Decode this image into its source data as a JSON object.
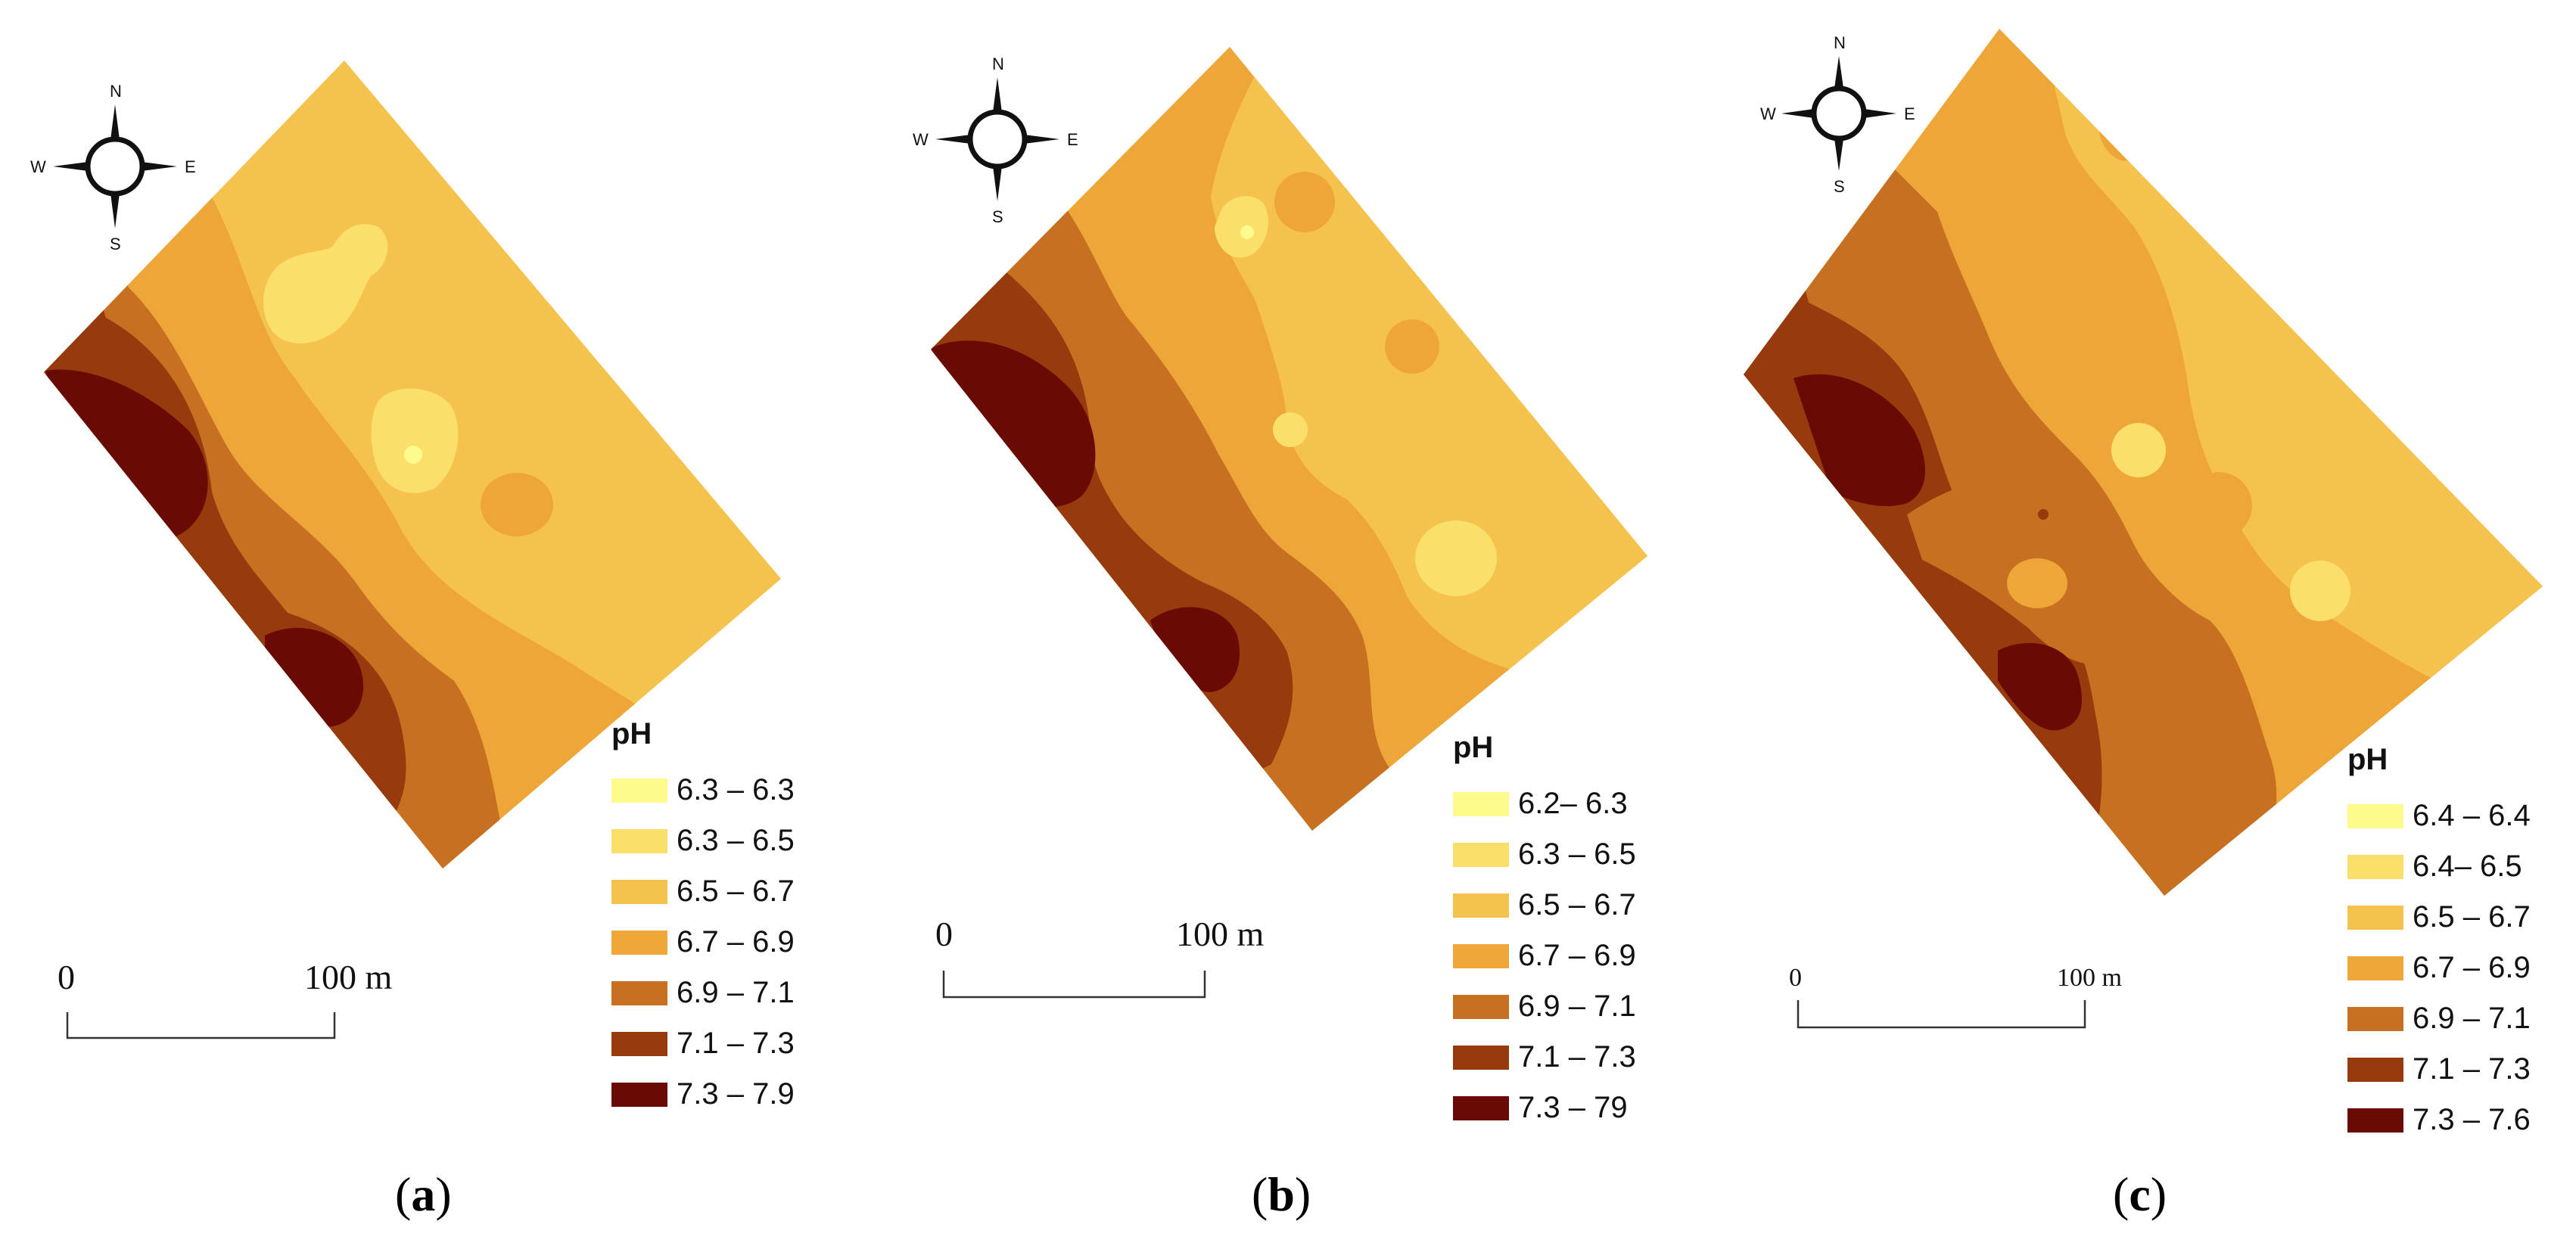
{
  "figure": {
    "panels": [
      {
        "id": "a",
        "caption_open": "(",
        "caption_letter": "a",
        "caption_close": ")",
        "compass": {
          "n": "N",
          "e": "E",
          "s": "S",
          "w": "W"
        },
        "scale": {
          "start": "0",
          "end": "100 m"
        },
        "legend": {
          "title": "pH",
          "items": [
            {
              "label": "6.3 – 6.3",
              "color": "#fdfb8c"
            },
            {
              "label": "6.3 – 6.5",
              "color": "#fadf6a"
            },
            {
              "label": "6.5 – 6.7",
              "color": "#f5c34d"
            },
            {
              "label": "6.7 – 6.9",
              "color": "#eea638"
            },
            {
              "label": "6.9 – 7.1",
              "color": "#c77021"
            },
            {
              "label": "7.1 – 7.3",
              "color": "#973a0d"
            },
            {
              "label": "7.3 – 7.9",
              "color": "#6a0a04"
            }
          ]
        }
      },
      {
        "id": "b",
        "caption_open": "(",
        "caption_letter": "b",
        "caption_close": ")",
        "compass": {
          "n": "N",
          "e": "E",
          "s": "S",
          "w": "W"
        },
        "scale": {
          "start": "0",
          "end": "100 m"
        },
        "legend": {
          "title": "pH",
          "items": [
            {
              "label": "6.2– 6.3",
              "color": "#fdfb8c"
            },
            {
              "label": "6.3 – 6.5",
              "color": "#fadf6a"
            },
            {
              "label": "6.5 – 6.7",
              "color": "#f5c34d"
            },
            {
              "label": "6.7 – 6.9",
              "color": "#eea638"
            },
            {
              "label": "6.9 – 7.1",
              "color": "#c77021"
            },
            {
              "label": "7.1 – 7.3",
              "color": "#973a0d"
            },
            {
              "label": "7.3 – 79",
              "color": "#6a0a04"
            }
          ]
        }
      },
      {
        "id": "c",
        "caption_open": "(",
        "caption_letter": "c",
        "caption_close": ")",
        "compass": {
          "n": "N",
          "e": "E",
          "s": "S",
          "w": "W"
        },
        "scale": {
          "start": "0",
          "end": "100 m"
        },
        "legend": {
          "title": "pH",
          "items": [
            {
              "label": "6.4 – 6.4",
              "color": "#fdfb8c"
            },
            {
              "label": "6.4– 6.5",
              "color": "#fadf6a"
            },
            {
              "label": "6.5 – 6.7",
              "color": "#f5c34d"
            },
            {
              "label": "6.7 – 6.9",
              "color": "#eea638"
            },
            {
              "label": "6.9 – 7.1",
              "color": "#c77021"
            },
            {
              "label": "7.1 – 7.3",
              "color": "#973a0d"
            },
            {
              "label": "7.3 – 7.6",
              "color": "#6a0a04"
            }
          ]
        }
      }
    ]
  }
}
